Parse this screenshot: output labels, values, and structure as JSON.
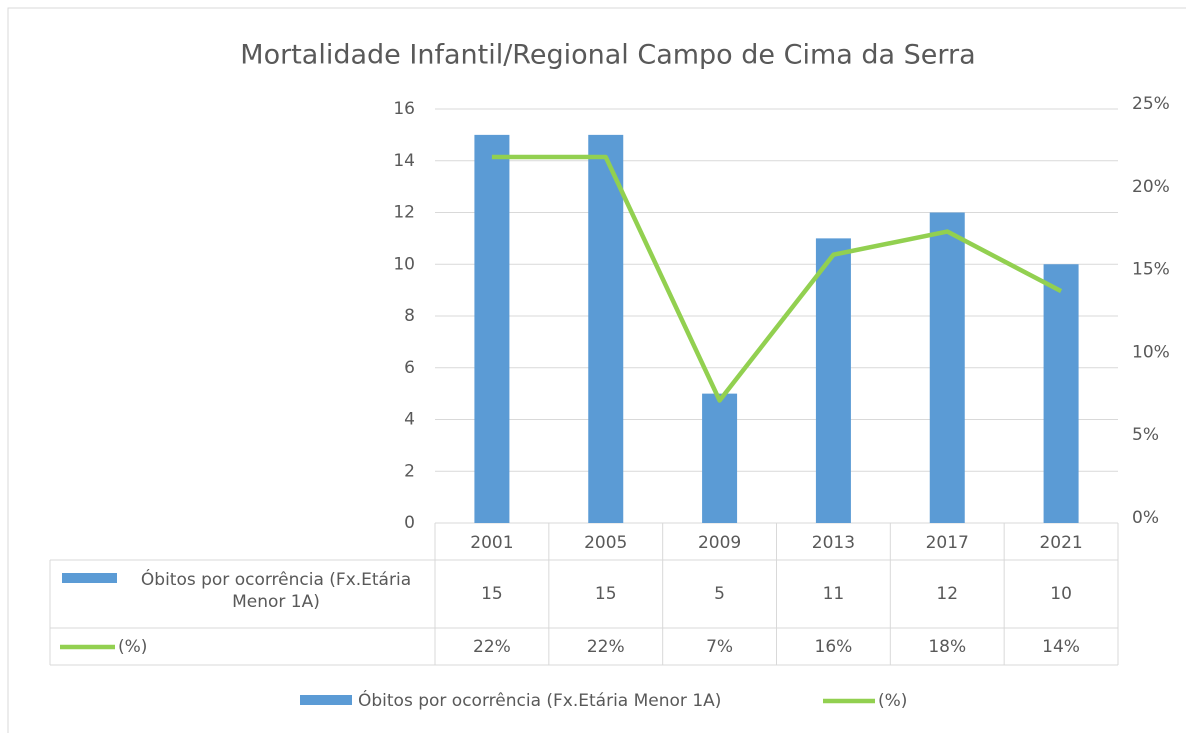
{
  "chart_data": {
    "type": "bar",
    "title": "Mortalidade Infantil/Regional Campo de Cima da Serra",
    "categories": [
      "2001",
      "2005",
      "2009",
      "2013",
      "2017",
      "2021"
    ],
    "series": [
      {
        "name": "Óbitos por ocorrência (Fx.Etária Menor 1A)",
        "color": "#5b9bd5",
        "type": "bar",
        "values": [
          15,
          15,
          5,
          11,
          12,
          10
        ]
      },
      {
        "name": "(%)",
        "color": "#92d050",
        "type": "line",
        "axis": "y2",
        "values": [
          22.1,
          22.1,
          7.4,
          16.2,
          17.6,
          14.0
        ],
        "value_labels": [
          "22%",
          "22%",
          "7%",
          "16%",
          "18%",
          "14%"
        ]
      }
    ],
    "ylim": [
      0,
      16
    ],
    "yticks": [
      0,
      2,
      4,
      6,
      8,
      10,
      12,
      14,
      16
    ],
    "y2lim": [
      0,
      25
    ],
    "y2ticks": [
      {
        "value": 0,
        "label": "0%"
      },
      {
        "value": 5,
        "label": "5%"
      },
      {
        "value": 10,
        "label": "10%"
      },
      {
        "value": 15,
        "label": "15%"
      },
      {
        "value": 20,
        "label": "20%"
      },
      {
        "value": 25,
        "label": "25%"
      }
    ],
    "grid": true,
    "legend": "bottom",
    "data_table": true
  }
}
